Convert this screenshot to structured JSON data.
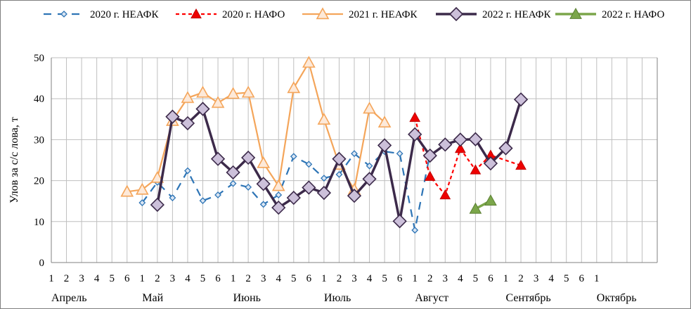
{
  "chart_data": {
    "type": "line",
    "ylabel": "Улов за с/с лова, т",
    "xlabel": "",
    "ylim": [
      0,
      50
    ],
    "yticks": [
      0,
      10,
      20,
      30,
      40,
      50
    ],
    "grid": true,
    "legend_position": "top",
    "x_tick_labels": [
      "1",
      "2",
      "3",
      "4",
      "5",
      "6",
      "1",
      "2",
      "3",
      "4",
      "5",
      "6",
      "1",
      "2",
      "3",
      "4",
      "5",
      "6",
      "1",
      "2",
      "3",
      "4",
      "5",
      "6",
      "1",
      "2",
      "3",
      "4",
      "5",
      "6",
      "1",
      "2",
      "3",
      "4",
      "5",
      "6",
      "1"
    ],
    "months": [
      {
        "label": "Апрель",
        "start": 0
      },
      {
        "label": "Май",
        "start": 6
      },
      {
        "label": "Июнь",
        "start": 12
      },
      {
        "label": "Июль",
        "start": 18
      },
      {
        "label": "Август",
        "start": 24
      },
      {
        "label": "Сентябрь",
        "start": 30
      },
      {
        "label": "Октябрь",
        "start": 36
      }
    ],
    "series": [
      {
        "name": "2020 г. НЕАФК",
        "color": "#2e75b6",
        "dash": "dash",
        "marker": "diamond-small",
        "points": [
          [
            6,
            14.6
          ],
          [
            7,
            19.6
          ],
          [
            8,
            15.8
          ],
          [
            9,
            22.4
          ],
          [
            10,
            15.1
          ],
          [
            11,
            16.5
          ],
          [
            12,
            19.3
          ],
          [
            13,
            18.4
          ],
          [
            14,
            14.2
          ],
          [
            15,
            16.5
          ],
          [
            16,
            25.9
          ],
          [
            17,
            24
          ],
          [
            18,
            20.6
          ],
          [
            19,
            21.5
          ],
          [
            20,
            26.6
          ],
          [
            21,
            23.6
          ],
          [
            22,
            27.1
          ],
          [
            23,
            26.6
          ],
          [
            24,
            7.9
          ],
          [
            25,
            26.6
          ]
        ]
      },
      {
        "name": "2020 г. НАФО",
        "color": "#ff0000",
        "dash": "dot",
        "marker": "triangle-red",
        "points": [
          [
            24,
            35.4
          ],
          [
            25,
            21
          ],
          [
            26,
            16.5
          ],
          [
            27,
            27.8
          ],
          [
            28,
            22.6
          ],
          [
            29,
            26.2
          ],
          [
            31,
            23.7
          ]
        ]
      },
      {
        "name": "2021 г. НЕАФК",
        "color": "#f4a55a",
        "dash": "solid",
        "marker": "triangle-open",
        "points": [
          [
            5,
            17.3
          ],
          [
            6,
            17.8
          ],
          [
            7,
            20.7
          ],
          [
            8,
            34.6
          ],
          [
            9,
            40.2
          ],
          [
            10,
            41.5
          ],
          [
            11,
            39
          ],
          [
            12,
            41.2
          ],
          [
            13,
            41.5
          ],
          [
            14,
            24.3
          ],
          [
            15,
            18.7
          ],
          [
            16,
            42.6
          ],
          [
            17,
            48.8
          ],
          [
            18,
            34.9
          ],
          [
            19,
            23.9
          ],
          [
            20,
            17.8
          ],
          [
            21,
            37.6
          ],
          [
            22,
            34.2
          ]
        ]
      },
      {
        "name": "2022 г. НЕАФК",
        "color": "#3c2a4a",
        "dash": "solid",
        "marker": "diamond-large",
        "points": [
          [
            7,
            14.1
          ],
          [
            8,
            35.6
          ],
          [
            9,
            34
          ],
          [
            10,
            37.5
          ],
          [
            11,
            25.3
          ],
          [
            12,
            22
          ],
          [
            13,
            25.6
          ],
          [
            14,
            19.2
          ],
          [
            15,
            13.4
          ],
          [
            16,
            15.8
          ],
          [
            17,
            18.3
          ],
          [
            18,
            17
          ],
          [
            19,
            25.3
          ],
          [
            20,
            16.3
          ],
          [
            21,
            20.4
          ],
          [
            22,
            28.6
          ],
          [
            23,
            10.1
          ],
          [
            24,
            31.3
          ],
          [
            25,
            26.1
          ],
          [
            26,
            28.8
          ],
          [
            27,
            30
          ],
          [
            28,
            30.1
          ],
          [
            29,
            24.2
          ],
          [
            30,
            27.9
          ],
          [
            31,
            39.8
          ]
        ]
      },
      {
        "name": "2022 г. НАФО",
        "color": "#7ba64a",
        "dash": "solid",
        "marker": "triangle-green",
        "points": [
          [
            28,
            13.1
          ],
          [
            29,
            15.1
          ]
        ]
      }
    ]
  }
}
